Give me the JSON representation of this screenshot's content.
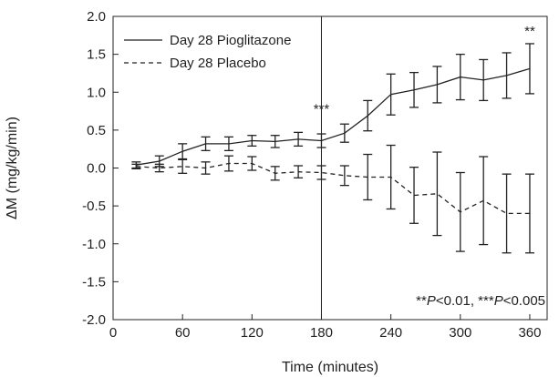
{
  "chart_data": {
    "type": "line",
    "title": "",
    "xlabel": "Time (minutes)",
    "ylabel": "ΔM (mg/kg/min)",
    "xlim": [
      0,
      375
    ],
    "ylim": [
      -2.0,
      2.0
    ],
    "xticks": [
      0,
      60,
      120,
      180,
      240,
      300,
      360
    ],
    "xtick_labels": [
      "0",
      "60",
      "120",
      "180",
      "240",
      "300",
      "360"
    ],
    "yticks": [
      -2.0,
      -1.5,
      -1.0,
      -0.5,
      0.0,
      0.5,
      1.0,
      1.5,
      2.0
    ],
    "ytick_labels": [
      "-2.0",
      "-1.5",
      "-1.0",
      "-0.5",
      "0.0",
      "0.5",
      "1.0",
      "1.5",
      "2.0"
    ],
    "grid": false,
    "legend_position": "top-left",
    "vertical_reference_x": 180,
    "series": [
      {
        "name": "Day 28 Pioglitazone",
        "style": "solid",
        "color": "#222222",
        "x": [
          20,
          40,
          60,
          80,
          100,
          120,
          140,
          160,
          180,
          200,
          220,
          240,
          260,
          280,
          300,
          320,
          340,
          360
        ],
        "y": [
          0.04,
          0.09,
          0.22,
          0.32,
          0.32,
          0.36,
          0.35,
          0.38,
          0.36,
          0.46,
          0.69,
          0.97,
          1.03,
          1.1,
          1.2,
          1.16,
          1.22,
          1.31
        ],
        "err": [
          0.04,
          0.07,
          0.1,
          0.09,
          0.09,
          0.07,
          0.08,
          0.09,
          0.09,
          0.12,
          0.2,
          0.27,
          0.23,
          0.24,
          0.3,
          0.27,
          0.3,
          0.33
        ]
      },
      {
        "name": "Day 28 Placebo",
        "style": "dashed",
        "color": "#222222",
        "x": [
          20,
          40,
          60,
          80,
          100,
          120,
          140,
          160,
          180,
          200,
          220,
          240,
          260,
          280,
          300,
          320,
          340,
          360
        ],
        "y": [
          0.02,
          0.0,
          0.02,
          0.0,
          0.06,
          0.06,
          -0.07,
          -0.05,
          -0.06,
          -0.1,
          -0.12,
          -0.12,
          -0.36,
          -0.34,
          -0.58,
          -0.43,
          -0.6,
          -0.6
        ],
        "err": [
          0.03,
          0.05,
          0.09,
          0.08,
          0.1,
          0.09,
          0.09,
          0.08,
          0.09,
          0.13,
          0.3,
          0.42,
          0.37,
          0.55,
          0.52,
          0.58,
          0.52,
          0.52
        ]
      }
    ],
    "annotations": [
      {
        "text": "***",
        "x": 180,
        "y": 0.72
      },
      {
        "text": "**",
        "x": 360,
        "y": 1.75
      }
    ],
    "significance_note": {
      "part1_stars": "**",
      "part1_p": "P",
      "part1_value": "<0.01, ",
      "part2_stars": "***",
      "part2_p": "P",
      "part2_value": "<0.005"
    }
  }
}
